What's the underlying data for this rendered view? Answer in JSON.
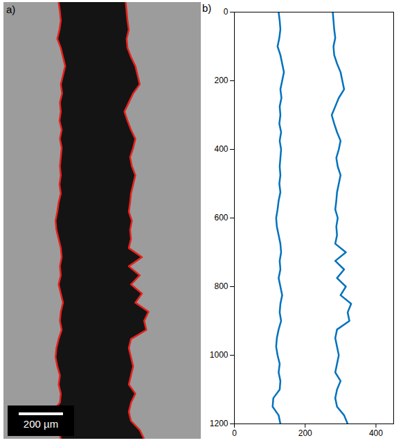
{
  "chart_data": [
    {
      "type": "image",
      "panel": "a)",
      "scale_bar": "200 µm",
      "color": "#e8211c"
    },
    {
      "type": "line",
      "panel": "b)",
      "y": [
        0,
        25,
        50,
        75,
        100,
        125,
        150,
        175,
        200,
        225,
        250,
        275,
        300,
        325,
        350,
        375,
        400,
        425,
        450,
        475,
        500,
        525,
        550,
        575,
        600,
        625,
        650,
        675,
        700,
        725,
        750,
        775,
        800,
        825,
        850,
        875,
        900,
        925,
        950,
        975,
        1000,
        1025,
        1050,
        1075,
        1100,
        1125,
        1150,
        1175,
        1200
      ],
      "series": [
        {
          "color": "#0072bd",
          "values": [
            125,
            128,
            130,
            127,
            122,
            130,
            135,
            140,
            135,
            130,
            133,
            128,
            130,
            127,
            132,
            128,
            132,
            130,
            128,
            130,
            127,
            130,
            125,
            122,
            118,
            120,
            125,
            130,
            132,
            128,
            130,
            125,
            130,
            135,
            130,
            128,
            132,
            125,
            120,
            118,
            122,
            128,
            125,
            130,
            128,
            110,
            108,
            125,
            130
          ]
        },
        {
          "color": "#0072bd",
          "values": [
            278,
            280,
            282,
            285,
            280,
            282,
            290,
            300,
            305,
            310,
            295,
            285,
            275,
            282,
            290,
            300,
            295,
            288,
            292,
            300,
            295,
            290,
            288,
            285,
            292,
            288,
            290,
            285,
            315,
            285,
            310,
            290,
            315,
            300,
            330,
            320,
            325,
            290,
            285,
            290,
            295,
            290,
            285,
            300,
            290,
            285,
            290,
            310,
            320
          ]
        }
      ],
      "xlim": [
        0,
        450
      ],
      "ylim": [
        0,
        1200
      ],
      "xticks": [
        0,
        200,
        400
      ],
      "yticks": [
        0,
        200,
        400,
        600,
        800,
        1000,
        1200
      ],
      "grid": false
    }
  ]
}
